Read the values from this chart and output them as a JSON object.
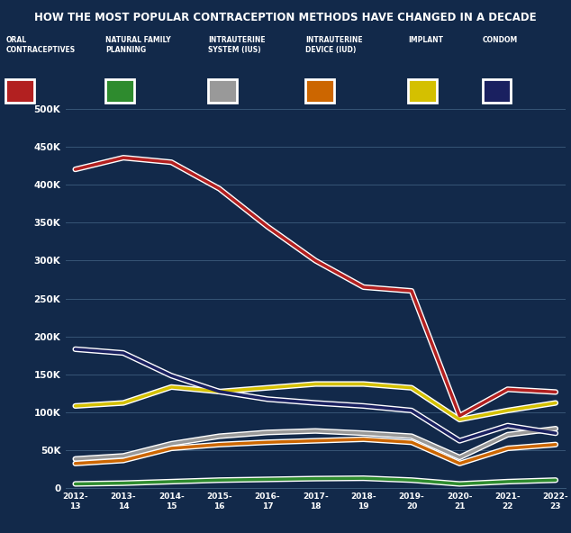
{
  "title": "HOW THE MOST POPULAR CONTRACEPTION METHODS HAVE CHANGED IN A DECADE",
  "title_bg": "#8b0000",
  "background_color": "#12294a",
  "grid_color": "#3a5a7a",
  "x_labels": [
    "2012-\n13",
    "2013-\n14",
    "2014-\n15",
    "2015-\n16",
    "2016-\n17",
    "2017-\n18",
    "2018-\n19",
    "2019-\n20",
    "2020-\n21",
    "2021-\n22",
    "2022-\n23"
  ],
  "legend": [
    {
      "name": "ORAL\nCONTRACEPTIVES",
      "color": "#b22020"
    },
    {
      "name": "NATURAL FAMILY\nPLANNING",
      "color": "#2e8b2e"
    },
    {
      "name": "INTRAUTERINE\nSYSTEM (IUS)",
      "color": "#999999"
    },
    {
      "name": "INTRAUTERINE\nDEVICE (IUD)",
      "color": "#cc6600"
    },
    {
      "name": "IMPLANT",
      "color": "#d4c000"
    },
    {
      "name": "CONDOM",
      "color": "#1a2060"
    }
  ],
  "series": [
    {
      "name": "ORAL CONTRACEPTIVES",
      "color": "#b22020",
      "values": [
        420600,
        436000,
        430000,
        395000,
        345000,
        300000,
        265000,
        260000,
        95000,
        130000,
        126400
      ]
    },
    {
      "name": "NATURAL FAMILY PLANNING",
      "color": "#2e8b2e",
      "values": [
        5000,
        6000,
        8000,
        10000,
        11000,
        12000,
        12500,
        10000,
        5000,
        8000,
        10000
      ]
    },
    {
      "name": "INTRAUTERINE SYSTEM (IUS)",
      "color": "#999999",
      "values": [
        38000,
        42000,
        58000,
        68000,
        73000,
        75000,
        72000,
        68000,
        40000,
        70000,
        78000
      ]
    },
    {
      "name": "INTRAUTERINE DEVICE (IUD)",
      "color": "#cc6600",
      "values": [
        32000,
        36000,
        52000,
        57000,
        60000,
        62000,
        64000,
        60000,
        32000,
        52000,
        57000
      ]
    },
    {
      "name": "IMPLANT",
      "color": "#d4c000",
      "values": [
        108000,
        112000,
        133000,
        127000,
        132000,
        137000,
        137000,
        132000,
        90000,
        102000,
        112000
      ]
    },
    {
      "name": "CONDOM",
      "color": "#1a2060",
      "values": [
        183000,
        178000,
        148000,
        127000,
        117000,
        112000,
        108000,
        102000,
        62000,
        82000,
        72000
      ]
    }
  ],
  "ylim": [
    0,
    500000
  ],
  "yticks": [
    0,
    50000,
    100000,
    150000,
    200000,
    250000,
    300000,
    350000,
    400000,
    450000,
    500000
  ],
  "ytick_labels": [
    "0",
    "50K",
    "100K",
    "150K",
    "200K",
    "250K",
    "300K",
    "350K",
    "400K",
    "450K",
    "500K"
  ]
}
